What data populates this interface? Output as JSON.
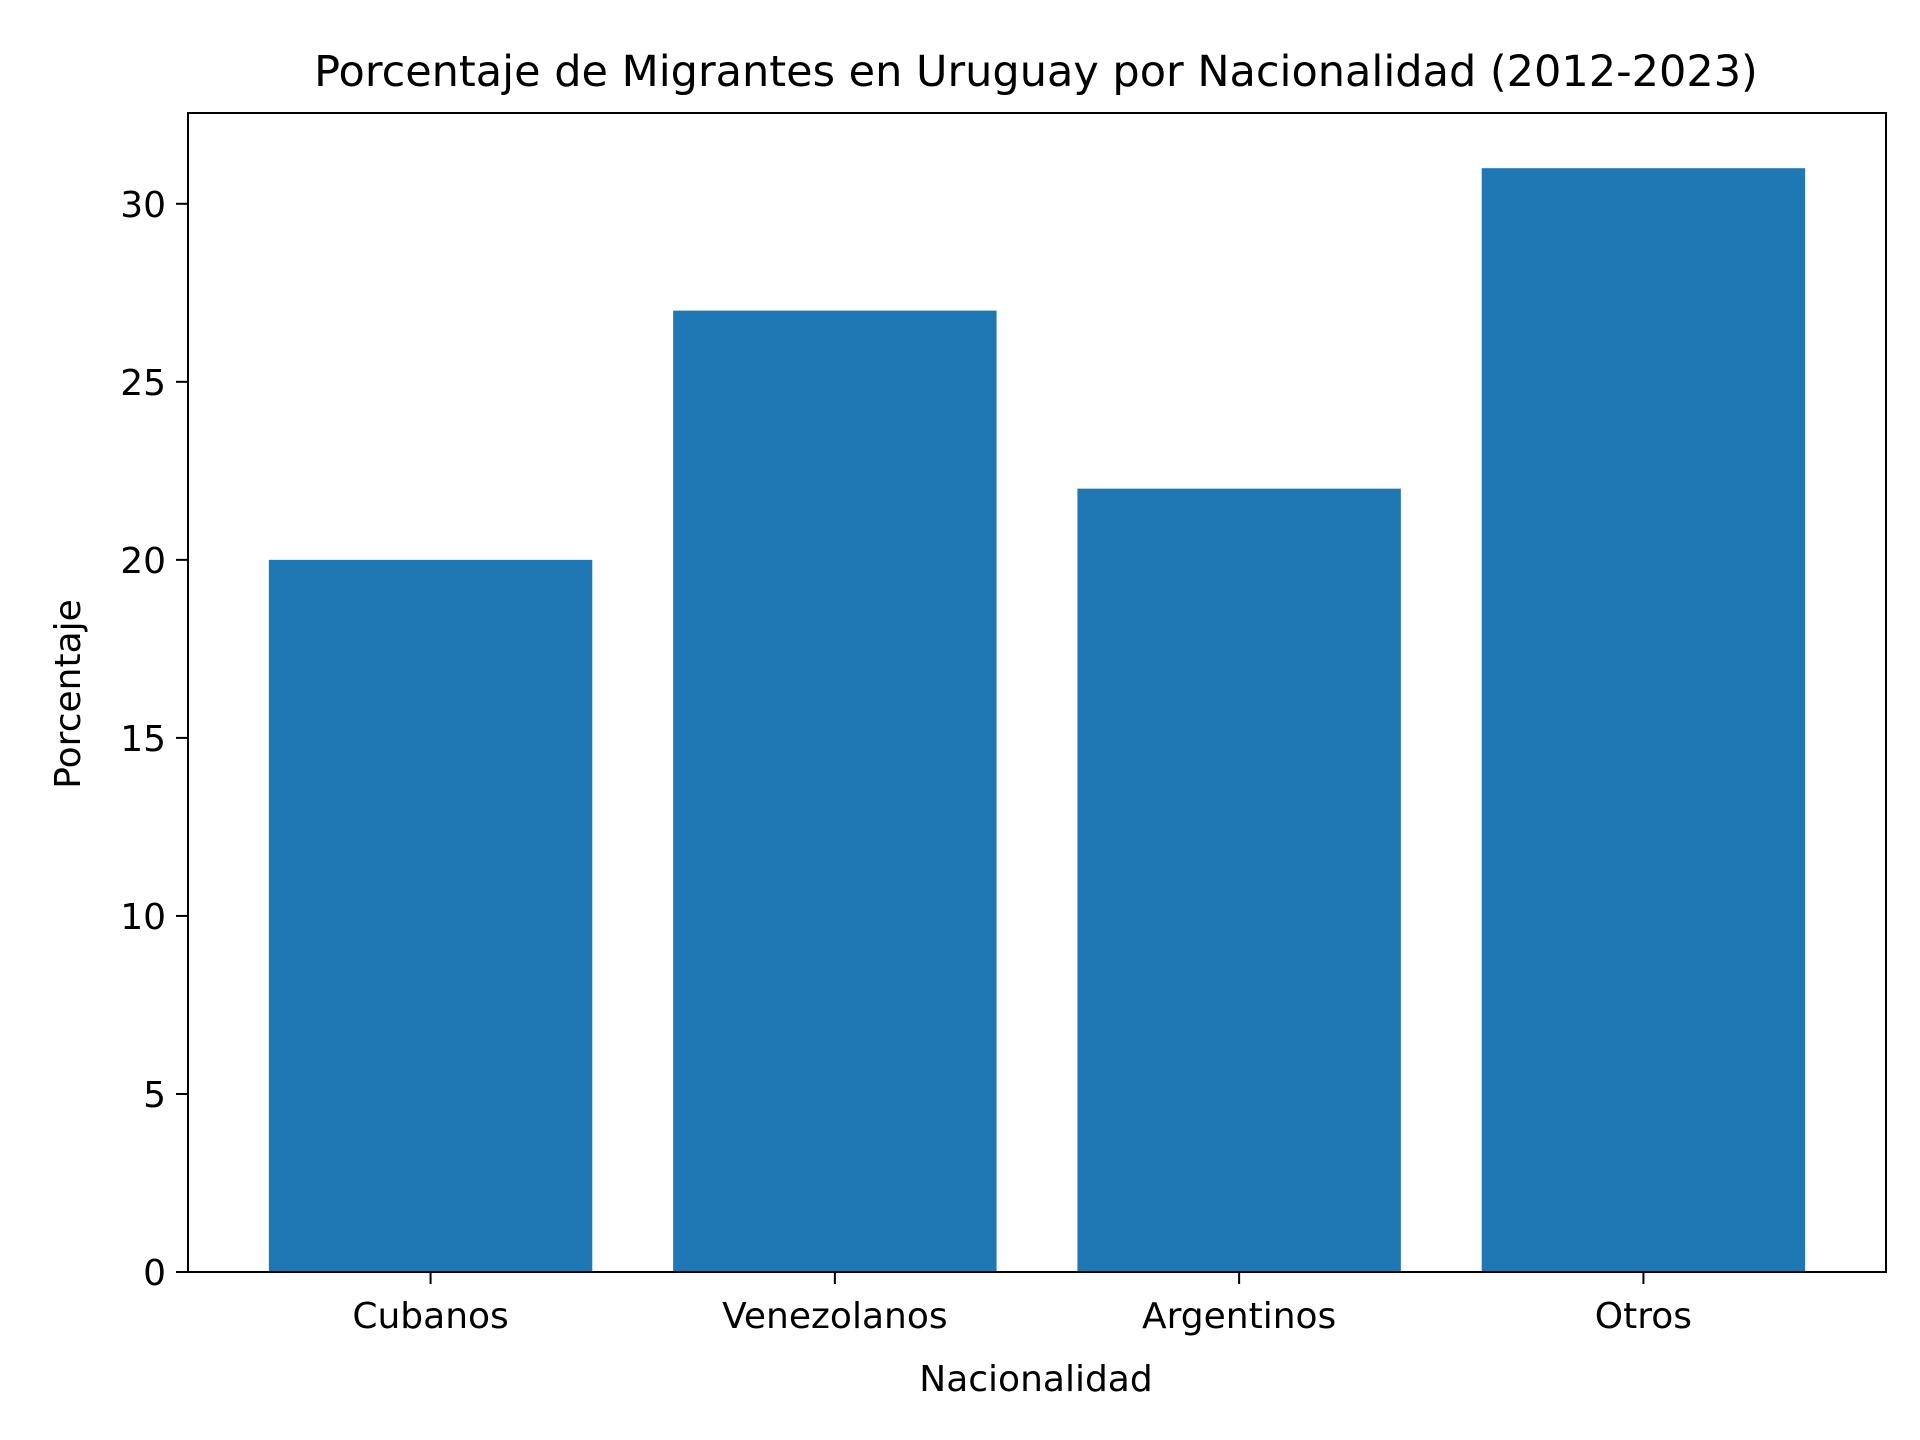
{
  "chart_data": {
    "type": "bar",
    "title": "Porcentaje de Migrantes en Uruguay por Nacionalidad (2012-2023)",
    "xlabel": "Nacionalidad",
    "ylabel": "Porcentaje",
    "categories": [
      "Cubanos",
      "Venezolanos",
      "Argentinos",
      "Otros"
    ],
    "values": [
      20,
      27,
      22,
      31
    ],
    "ylim": [
      0,
      32.55
    ],
    "yticks": [
      0,
      5,
      10,
      15,
      20,
      25,
      30
    ],
    "bar_color": "#1f77b4",
    "grid": false,
    "legend": "none"
  }
}
